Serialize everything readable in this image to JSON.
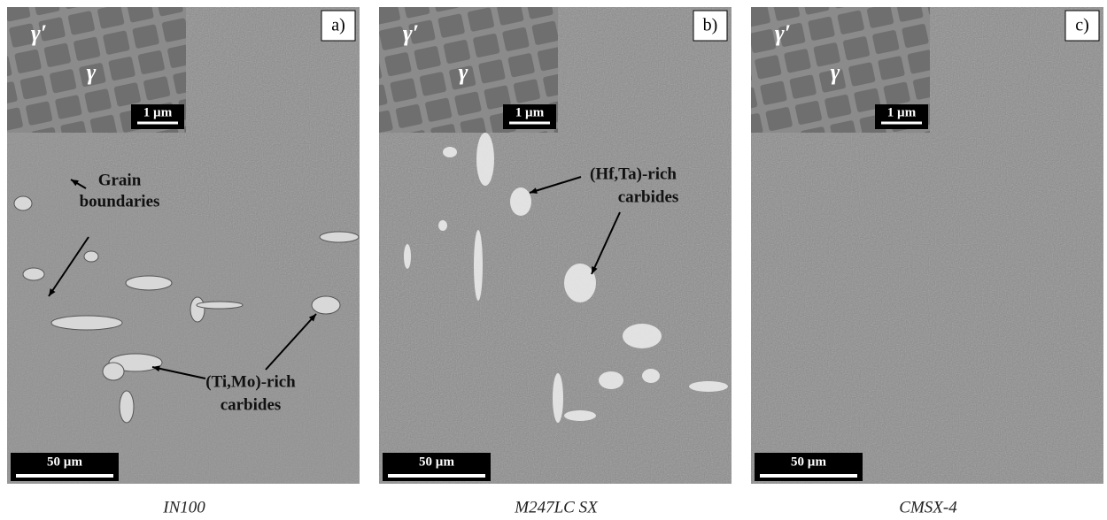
{
  "panels": [
    {
      "label": "a)",
      "inset": {
        "gamma_prime": "γ′",
        "gamma": "γ",
        "scale": "1 µm"
      },
      "scale": "50 µm",
      "caption": "IN100",
      "annotations": [
        {
          "lines": [
            "Grain",
            "boundaries"
          ]
        },
        {
          "lines": [
            "(Ti,Mo)-rich",
            "carbides"
          ]
        }
      ]
    },
    {
      "label": "b)",
      "inset": {
        "gamma_prime": "γ′",
        "gamma": "γ",
        "scale": "1 µm"
      },
      "scale": "50 µm",
      "caption": "M247LC SX",
      "annotations": [
        {
          "lines": [
            "(Hf,Ta)-rich",
            "carbides"
          ]
        }
      ]
    },
    {
      "label": "c)",
      "inset": {
        "gamma_prime": "γ′",
        "gamma": "γ",
        "scale": "1 µm"
      },
      "scale": "50 µm",
      "caption": "CMSX-4",
      "annotations": []
    }
  ]
}
